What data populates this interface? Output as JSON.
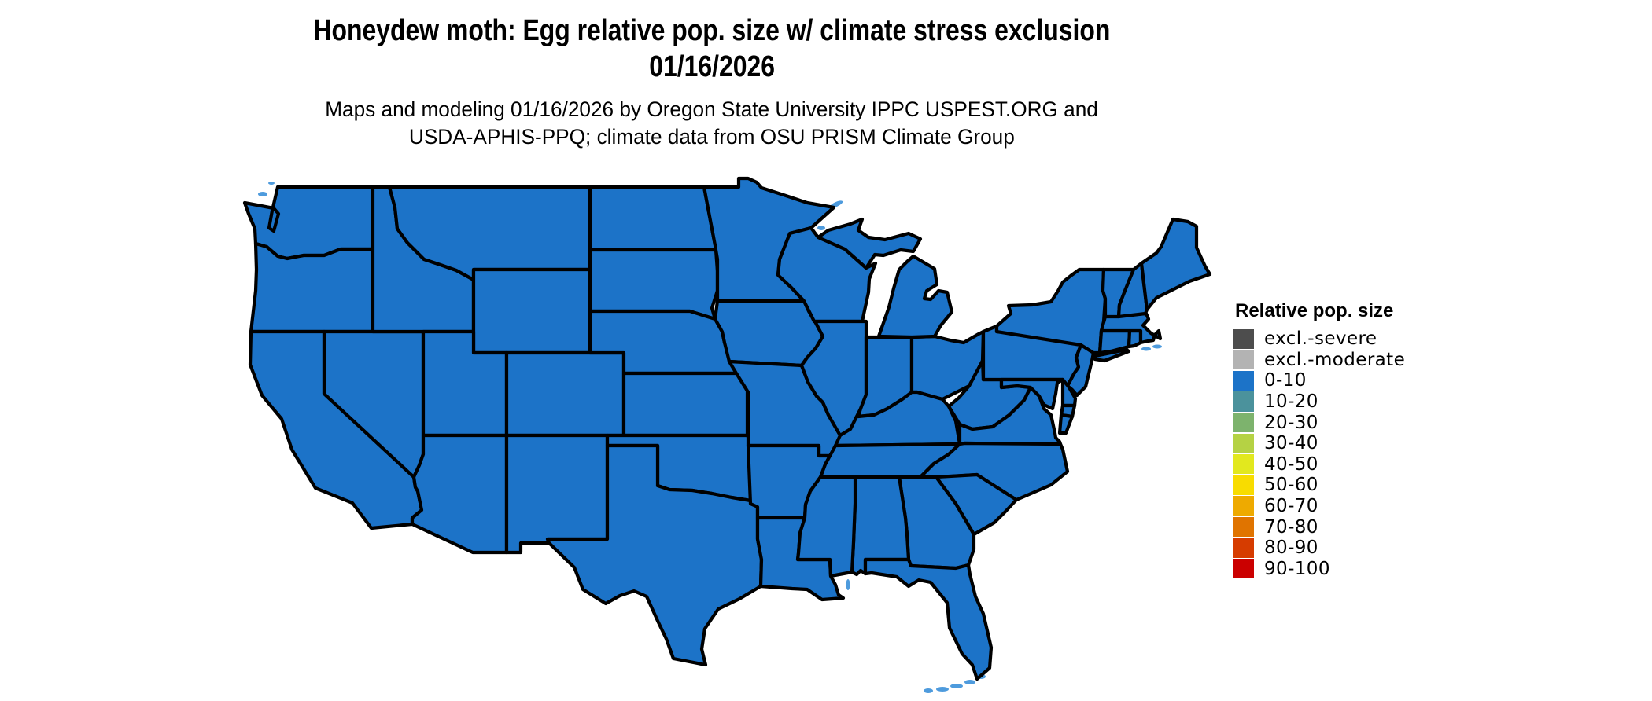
{
  "page": {
    "background": "#ffffff"
  },
  "title": {
    "line1": "Honeydew moth: Egg relative pop. size w/ climate stress exclusion",
    "line2": "01/16/2026"
  },
  "subtitle": {
    "line1": "Maps and modeling 01/16/2026 by Oregon State University IPPC USPEST.ORG and",
    "line2": "USDA-APHIS-PPQ; climate data from OSU PRISM Climate Group"
  },
  "legend": {
    "title": "Relative pop. size",
    "items": [
      {
        "label": "excl.-severe",
        "color": "#4d4d4d"
      },
      {
        "label": "excl.-moderate",
        "color": "#b3b3b3"
      },
      {
        "label": "0-10",
        "color": "#1c73c8"
      },
      {
        "label": "10-20",
        "color": "#4b929c"
      },
      {
        "label": "20-30",
        "color": "#7db36d"
      },
      {
        "label": "30-40",
        "color": "#b5d244"
      },
      {
        "label": "40-50",
        "color": "#e2e81e"
      },
      {
        "label": "50-60",
        "color": "#f8dc00"
      },
      {
        "label": "60-70",
        "color": "#eeaa00"
      },
      {
        "label": "70-80",
        "color": "#e07400"
      },
      {
        "label": "80-90",
        "color": "#d63c00"
      },
      {
        "label": "90-100",
        "color": "#cb0000"
      }
    ]
  },
  "map": {
    "region": "Contiguous United States",
    "fill_class_for_all_states": "0-10",
    "fill_color": "#1c73c8",
    "coastal_fill_color": "#4e9bdd",
    "border_color": "#000000"
  }
}
